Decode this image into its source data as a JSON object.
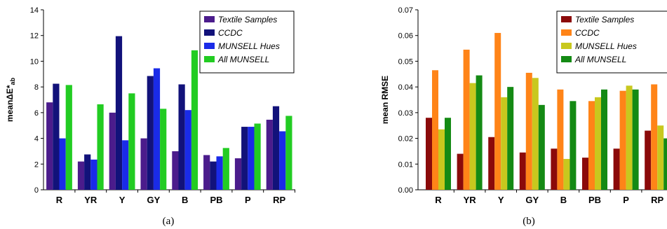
{
  "chart_data": [
    {
      "type": "bar",
      "caption": "(a)",
      "ylabel": "meanΔE*ab",
      "ylabel_main": "meanΔE*",
      "ylabel_sub": "ab",
      "ylim": [
        0,
        14
      ],
      "yticks": [
        "0",
        "2",
        "4",
        "6",
        "8",
        "10",
        "12",
        "14"
      ],
      "legend_position": "top-right",
      "categories": [
        "R",
        "YR",
        "Y",
        "GY",
        "B",
        "PB",
        "P",
        "RP"
      ],
      "series": [
        {
          "name": "Textile Samples",
          "color": "#4B1C8C",
          "values": [
            6.8,
            2.2,
            6.0,
            4.0,
            3.0,
            2.7,
            2.45,
            5.45
          ]
        },
        {
          "name": "CCDC",
          "color": "#12127A",
          "values": [
            8.25,
            2.75,
            11.95,
            8.85,
            8.2,
            2.2,
            4.9,
            6.5
          ]
        },
        {
          "name": "MUNSELL Hues",
          "color": "#1A2BE8",
          "values": [
            4.0,
            2.35,
            3.85,
            9.45,
            6.2,
            2.6,
            4.9,
            4.55
          ]
        },
        {
          "name": "All MUNSELL",
          "color": "#22CC22",
          "values": [
            8.15,
            6.65,
            7.5,
            6.3,
            10.85,
            3.25,
            5.15,
            5.75
          ]
        }
      ]
    },
    {
      "type": "bar",
      "caption": "(b)",
      "ylabel": "mean RMSE",
      "ylim": [
        0,
        0.07
      ],
      "yticks": [
        "0.00",
        "0.01",
        "0.02",
        "0.03",
        "0.04",
        "0.05",
        "0.06",
        "0.07"
      ],
      "legend_position": "top-right",
      "categories": [
        "R",
        "YR",
        "Y",
        "GY",
        "B",
        "PB",
        "P",
        "RP"
      ],
      "series": [
        {
          "name": "Textile Samples",
          "color": "#8B0A0A",
          "values": [
            0.028,
            0.014,
            0.0205,
            0.0145,
            0.016,
            0.0125,
            0.016,
            0.023
          ]
        },
        {
          "name": "CCDC",
          "color": "#FF8418",
          "values": [
            0.0465,
            0.0545,
            0.061,
            0.0455,
            0.039,
            0.0345,
            0.0385,
            0.041
          ]
        },
        {
          "name": "MUNSELL Hues",
          "color": "#C8C81E",
          "values": [
            0.0235,
            0.0415,
            0.036,
            0.0435,
            0.012,
            0.036,
            0.0405,
            0.025
          ]
        },
        {
          "name": "All MUNSELL",
          "color": "#148A14",
          "values": [
            0.028,
            0.0445,
            0.04,
            0.033,
            0.0345,
            0.039,
            0.039,
            0.02
          ]
        }
      ]
    }
  ]
}
